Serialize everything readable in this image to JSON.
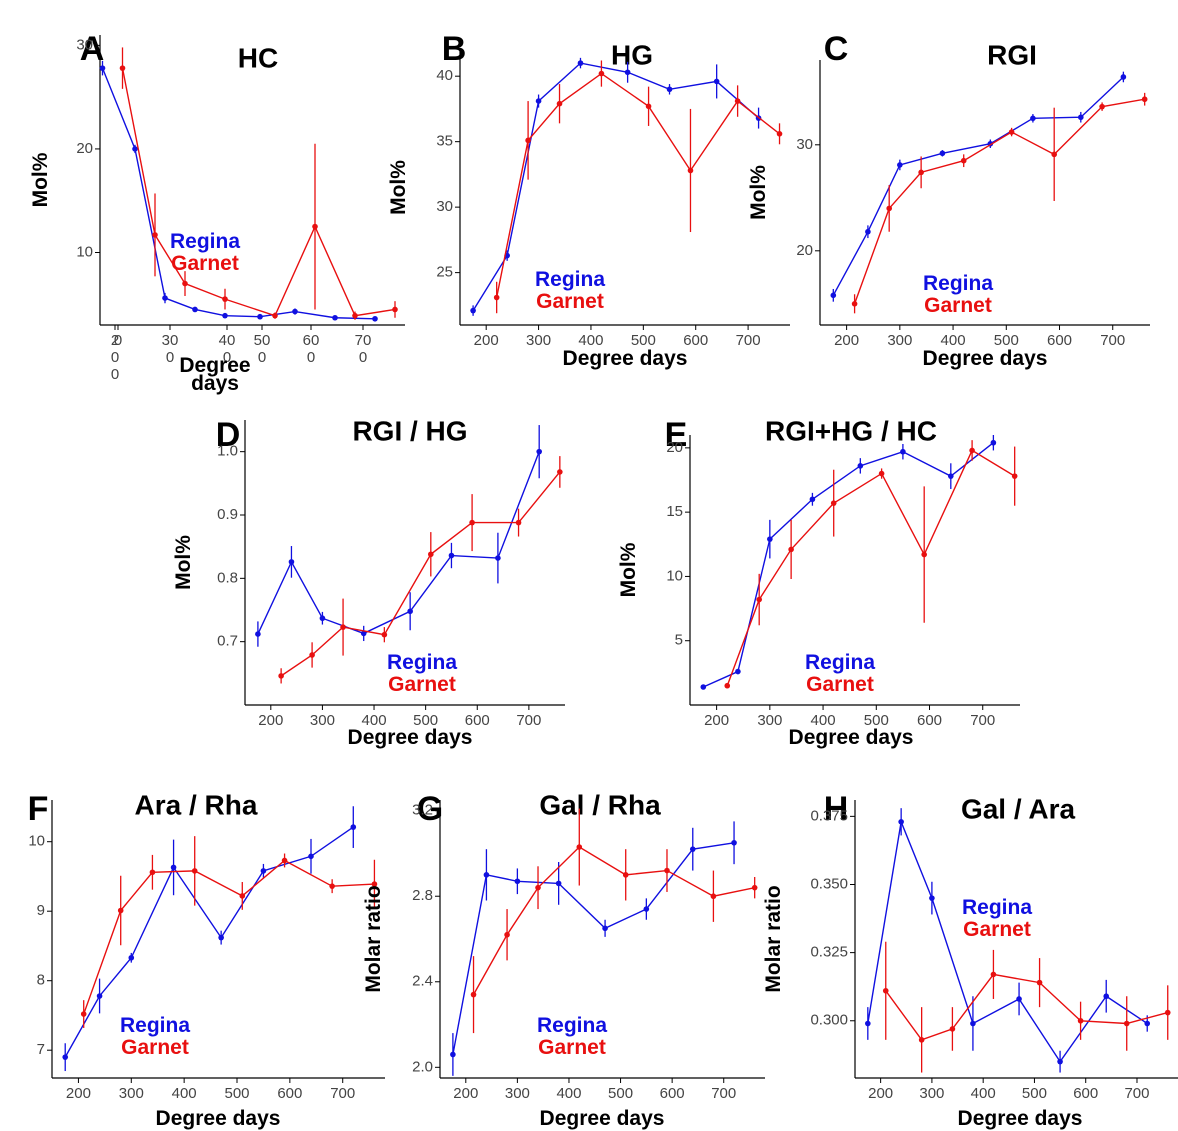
{
  "colors": {
    "regina": "#1010e0",
    "garnet": "#e81010",
    "axis": "#000000",
    "tick_text": "#444444"
  },
  "legend": {
    "regina": "Regina",
    "garnet": "Garnet"
  },
  "chart_data": [
    {
      "id": "A",
      "letter": "A",
      "type": "line",
      "title": "HC",
      "xlabel": "Degree\ndays",
      "ylabel": "Mol%",
      "xlim": [
        170,
        780
      ],
      "ylim": [
        3,
        31
      ],
      "x_tick_labels": [
        "2\n0\n0",
        "0",
        "30\n0",
        "40\n0",
        "50\n0",
        "60\n0",
        "70\n0"
      ],
      "y_ticks": [
        10,
        20,
        30
      ],
      "series": [
        {
          "name": "Regina",
          "x": [
            175,
            240,
            300,
            360,
            420,
            490,
            560,
            640,
            720
          ],
          "y": [
            27.8,
            20.0,
            5.6,
            4.5,
            3.9,
            3.8,
            4.3,
            3.7,
            3.6
          ],
          "err": [
            0.7,
            0.4,
            0.5,
            0.2,
            0.2,
            0.2,
            0.3,
            0.2,
            0.2
          ]
        },
        {
          "name": "Garnet",
          "x": [
            215,
            280,
            340,
            420,
            520,
            600,
            680,
            760
          ],
          "y": [
            27.8,
            11.7,
            7.0,
            5.5,
            3.9,
            12.5,
            3.9,
            4.5
          ],
          "err": [
            2.0,
            4.0,
            1.2,
            1.0,
            0.3,
            8.0,
            0.4,
            0.8
          ]
        }
      ]
    },
    {
      "id": "B",
      "letter": "B",
      "type": "line",
      "title": "HG",
      "xlabel": "Degree days",
      "ylabel": "Mol%",
      "xlim": [
        150,
        780
      ],
      "ylim": [
        21,
        42
      ],
      "x_ticks": [
        200,
        300,
        400,
        500,
        600,
        700
      ],
      "y_ticks": [
        25,
        30,
        35,
        40
      ],
      "series": [
        {
          "name": "Regina",
          "x": [
            175,
            240,
            300,
            380,
            470,
            550,
            640,
            720
          ],
          "y": [
            22.1,
            26.3,
            38.1,
            41.0,
            40.3,
            39.0,
            39.6,
            36.8
          ],
          "err": [
            0.4,
            0.4,
            0.5,
            0.4,
            0.8,
            0.4,
            1.3,
            0.8
          ]
        },
        {
          "name": "Garnet",
          "x": [
            220,
            280,
            340,
            420,
            510,
            590,
            680,
            760
          ],
          "y": [
            23.1,
            35.1,
            37.9,
            40.2,
            37.7,
            32.8,
            38.1,
            35.6
          ],
          "err": [
            1.2,
            3.0,
            1.5,
            1.0,
            1.5,
            4.7,
            1.2,
            0.8
          ]
        }
      ]
    },
    {
      "id": "C",
      "letter": "C",
      "type": "line",
      "title": "RGI",
      "xlabel": "Degree days",
      "ylabel": "Mol%",
      "xlim": [
        150,
        770
      ],
      "ylim": [
        13,
        38
      ],
      "x_ticks": [
        200,
        300,
        400,
        500,
        600,
        700
      ],
      "y_ticks": [
        20,
        30
      ],
      "series": [
        {
          "name": "Regina",
          "x": [
            175,
            240,
            300,
            380,
            470,
            550,
            640,
            720
          ],
          "y": [
            15.8,
            21.8,
            28.1,
            29.2,
            30.1,
            32.5,
            32.6,
            36.4
          ],
          "err": [
            0.6,
            0.6,
            0.5,
            0.3,
            0.4,
            0.4,
            0.5,
            0.5
          ]
        },
        {
          "name": "Garnet",
          "x": [
            215,
            280,
            340,
            420,
            510,
            590,
            680,
            760
          ],
          "y": [
            15.0,
            24.0,
            27.4,
            28.5,
            31.2,
            29.1,
            33.6,
            34.3
          ],
          "err": [
            0.9,
            2.2,
            1.5,
            0.6,
            0.4,
            4.4,
            0.4,
            0.6
          ]
        }
      ]
    },
    {
      "id": "D",
      "letter": "D",
      "type": "line",
      "title": "RGI / HG",
      "xlabel": "Degree days",
      "ylabel": "Mol%",
      "xlim": [
        150,
        770
      ],
      "ylim": [
        0.6,
        1.05
      ],
      "x_ticks": [
        200,
        300,
        400,
        500,
        600,
        700
      ],
      "y_ticks": [
        0.7,
        0.8,
        0.9,
        1.0
      ],
      "y_tick_labels": [
        "0.7",
        "0.8",
        "0.9",
        "1.0"
      ],
      "series": [
        {
          "name": "Regina",
          "x": [
            175,
            240,
            300,
            380,
            470,
            550,
            640,
            720
          ],
          "y": [
            0.712,
            0.826,
            0.737,
            0.713,
            0.748,
            0.836,
            0.832,
            1.0
          ],
          "err": [
            0.02,
            0.025,
            0.01,
            0.012,
            0.03,
            0.02,
            0.04,
            0.042
          ]
        },
        {
          "name": "Garnet",
          "x": [
            220,
            280,
            340,
            420,
            510,
            590,
            680,
            760
          ],
          "y": [
            0.646,
            0.679,
            0.723,
            0.711,
            0.838,
            0.888,
            0.888,
            0.968
          ],
          "err": [
            0.012,
            0.02,
            0.045,
            0.012,
            0.035,
            0.045,
            0.022,
            0.025
          ]
        }
      ]
    },
    {
      "id": "E",
      "letter": "E",
      "type": "line",
      "title": "RGI+HG / HC",
      "xlabel": "Degree days",
      "ylabel": "Mol%",
      "xlim": [
        150,
        770
      ],
      "ylim": [
        0,
        21
      ],
      "x_ticks": [
        200,
        300,
        400,
        500,
        600,
        700
      ],
      "y_ticks": [
        5,
        10,
        15,
        20
      ],
      "series": [
        {
          "name": "Regina",
          "x": [
            175,
            240,
            300,
            380,
            470,
            550,
            640,
            720
          ],
          "y": [
            1.4,
            2.6,
            12.9,
            16.0,
            18.6,
            19.7,
            17.8,
            20.4
          ],
          "err": [
            0.1,
            0.2,
            1.5,
            0.5,
            0.6,
            0.6,
            1.0,
            0.6
          ]
        },
        {
          "name": "Garnet",
          "x": [
            220,
            280,
            340,
            420,
            510,
            590,
            680,
            760
          ],
          "y": [
            1.5,
            8.2,
            12.1,
            15.7,
            18.0,
            11.7,
            19.8,
            17.8
          ],
          "err": [
            0.1,
            2.0,
            2.3,
            2.6,
            0.4,
            5.3,
            0.8,
            2.3
          ]
        }
      ]
    },
    {
      "id": "F",
      "letter": "F",
      "type": "line",
      "title": "Ara / Rha",
      "xlabel": "Degree days",
      "ylabel": "Molar ratio",
      "xlim": [
        150,
        780
      ],
      "ylim": [
        6.6,
        10.6
      ],
      "x_ticks": [
        200,
        300,
        400,
        500,
        600,
        700
      ],
      "y_ticks": [
        7,
        8,
        9,
        10
      ],
      "series": [
        {
          "name": "Regina",
          "x": [
            175,
            240,
            300,
            380,
            470,
            550,
            640,
            720
          ],
          "y": [
            6.9,
            7.78,
            8.33,
            9.63,
            8.62,
            9.58,
            9.79,
            10.21
          ],
          "err": [
            0.2,
            0.25,
            0.07,
            0.4,
            0.1,
            0.1,
            0.25,
            0.3
          ]
        },
        {
          "name": "Garnet",
          "x": [
            210,
            280,
            340,
            420,
            510,
            590,
            680,
            760
          ],
          "y": [
            7.52,
            9.01,
            9.56,
            9.58,
            9.22,
            9.73,
            9.36,
            9.39
          ],
          "err": [
            0.2,
            0.5,
            0.25,
            0.5,
            0.2,
            0.1,
            0.1,
            0.35
          ]
        }
      ]
    },
    {
      "id": "G",
      "letter": "G",
      "type": "line",
      "title": "Gal / Rha",
      "xlabel": "Degree days",
      "ylabel": "Molar ratio",
      "xlim": [
        150,
        780
      ],
      "ylim": [
        1.95,
        3.25
      ],
      "x_ticks": [
        200,
        300,
        400,
        500,
        600,
        700
      ],
      "y_ticks": [
        2.0,
        2.4,
        2.8,
        3.2
      ],
      "y_tick_labels": [
        "2.0",
        "2.4",
        "2.8",
        "3.2"
      ],
      "series": [
        {
          "name": "Regina",
          "x": [
            175,
            240,
            300,
            380,
            470,
            550,
            640,
            720
          ],
          "y": [
            2.06,
            2.9,
            2.87,
            2.86,
            2.65,
            2.74,
            3.02,
            3.05
          ],
          "err": [
            0.1,
            0.12,
            0.06,
            0.1,
            0.04,
            0.05,
            0.1,
            0.1
          ]
        },
        {
          "name": "Garnet",
          "x": [
            215,
            280,
            340,
            420,
            510,
            590,
            680,
            760
          ],
          "y": [
            2.34,
            2.62,
            2.84,
            3.03,
            2.9,
            2.92,
            2.8,
            2.84
          ],
          "err": [
            0.18,
            0.12,
            0.1,
            0.18,
            0.12,
            0.1,
            0.12,
            0.05
          ]
        }
      ]
    },
    {
      "id": "H",
      "letter": "H",
      "type": "line",
      "title": "Gal  / Ara",
      "xlabel": "Degree days",
      "ylabel": "Molar ratio",
      "xlim": [
        150,
        780
      ],
      "ylim": [
        0.279,
        0.381
      ],
      "x_ticks": [
        200,
        300,
        400,
        500,
        600,
        700
      ],
      "y_ticks": [
        0.3,
        0.325,
        0.35,
        0.375
      ],
      "y_tick_labels": [
        "0.300",
        "0.325",
        "0.350",
        "0.375"
      ],
      "series": [
        {
          "name": "Regina",
          "x": [
            175,
            240,
            300,
            380,
            470,
            550,
            640,
            720
          ],
          "y": [
            0.299,
            0.373,
            0.345,
            0.299,
            0.308,
            0.285,
            0.309,
            0.299
          ],
          "err": [
            0.006,
            0.005,
            0.006,
            0.01,
            0.006,
            0.004,
            0.006,
            0.003
          ]
        },
        {
          "name": "Garnet",
          "x": [
            210,
            280,
            340,
            420,
            510,
            590,
            680,
            760
          ],
          "y": [
            0.311,
            0.293,
            0.297,
            0.317,
            0.314,
            0.3,
            0.299,
            0.303
          ],
          "err": [
            0.018,
            0.012,
            0.008,
            0.009,
            0.009,
            0.007,
            0.01,
            0.01
          ]
        }
      ]
    }
  ]
}
